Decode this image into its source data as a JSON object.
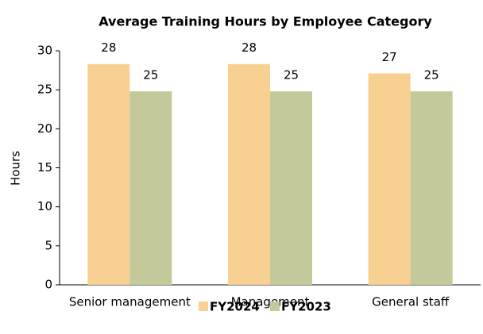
{
  "chart_data": {
    "type": "bar",
    "title": "Average Training Hours by Employee Category",
    "categories": [
      "Senior management",
      "Management",
      "General staff"
    ],
    "series": [
      {
        "name": "FY2024",
        "color": "#f8d192",
        "values": [
          28.3,
          28.3,
          27.1
        ],
        "value_labels": [
          "28",
          "28",
          "27"
        ]
      },
      {
        "name": "FY2023",
        "color": "#c3c99b",
        "values": [
          24.8,
          24.8,
          24.8
        ],
        "value_labels": [
          "25",
          "25",
          "25"
        ]
      }
    ],
    "ylabel": "Hours",
    "ylim": [
      0,
      30
    ],
    "yticks": [
      0,
      5,
      10,
      15,
      20,
      25,
      30
    ],
    "grid": false,
    "legend": "bottom"
  }
}
